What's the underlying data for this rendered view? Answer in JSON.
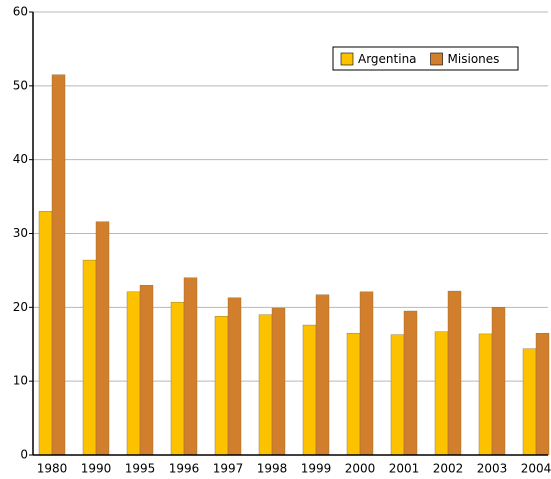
{
  "chart_data": {
    "type": "bar",
    "categories": [
      "1980",
      "1990",
      "1995",
      "1996",
      "1997",
      "1998",
      "1999",
      "2000",
      "2001",
      "2002",
      "2003",
      "2004"
    ],
    "series": [
      {
        "name": "Argentina",
        "color": "#fcc200",
        "values": [
          33.0,
          26.4,
          22.1,
          20.7,
          18.8,
          19.0,
          17.6,
          16.5,
          16.3,
          16.7,
          16.4,
          14.4
        ]
      },
      {
        "name": "Misiones",
        "color": "#d27f2d",
        "values": [
          51.5,
          31.6,
          23.0,
          24.0,
          21.3,
          19.9,
          21.7,
          22.1,
          19.5,
          22.2,
          20.0,
          16.5
        ]
      }
    ],
    "ylim": [
      0,
      60
    ],
    "yticks": [
      0,
      10,
      20,
      30,
      40,
      50,
      60
    ],
    "grid": true,
    "legend": "upper right"
  }
}
